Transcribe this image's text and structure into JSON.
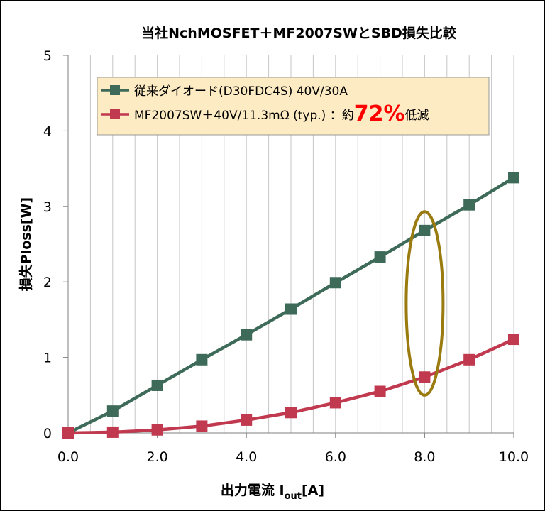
{
  "chart_data": {
    "type": "line",
    "title": "当社NchMOSFET＋MF2007SWとSBD損失比較",
    "xlabel_main": "出力電流 I",
    "xlabel_sub": "out",
    "xlabel_tail": "[A]",
    "ylabel": "損失Ploss[W]",
    "xlim": [
      0,
      10
    ],
    "ylim": [
      0,
      5
    ],
    "x_ticks": [
      "0.0",
      "2.0",
      "4.0",
      "6.0",
      "8.0",
      "10.0"
    ],
    "y_ticks": [
      "0",
      "1",
      "2",
      "3",
      "4",
      "5"
    ],
    "grid": "vertical-minor",
    "legend_position": "top-left",
    "x": [
      0,
      1,
      2,
      3,
      4,
      5,
      6,
      7,
      8,
      9,
      10
    ],
    "series": [
      {
        "name": "従来ダイオード(D30FDC4S) 40V/30A",
        "color": "#3e6b59",
        "marker": "square",
        "values": [
          0.0,
          0.29,
          0.63,
          0.97,
          1.3,
          1.64,
          1.99,
          2.33,
          2.68,
          3.02,
          3.38
        ]
      },
      {
        "name": "MF2007SW＋40V/11.3mΩ (typ.) ：約",
        "name_highlight": "72%",
        "name_tail": "低減",
        "color": "#c0394f",
        "highlight_color": "#ff0000",
        "marker": "square",
        "values": [
          0.0,
          0.01,
          0.04,
          0.09,
          0.17,
          0.27,
          0.4,
          0.55,
          0.74,
          0.97,
          1.24
        ]
      }
    ],
    "annotation": {
      "type": "ellipse",
      "x": 8,
      "y_range": [
        0.5,
        2.93
      ],
      "color": "#9a7b10"
    }
  }
}
